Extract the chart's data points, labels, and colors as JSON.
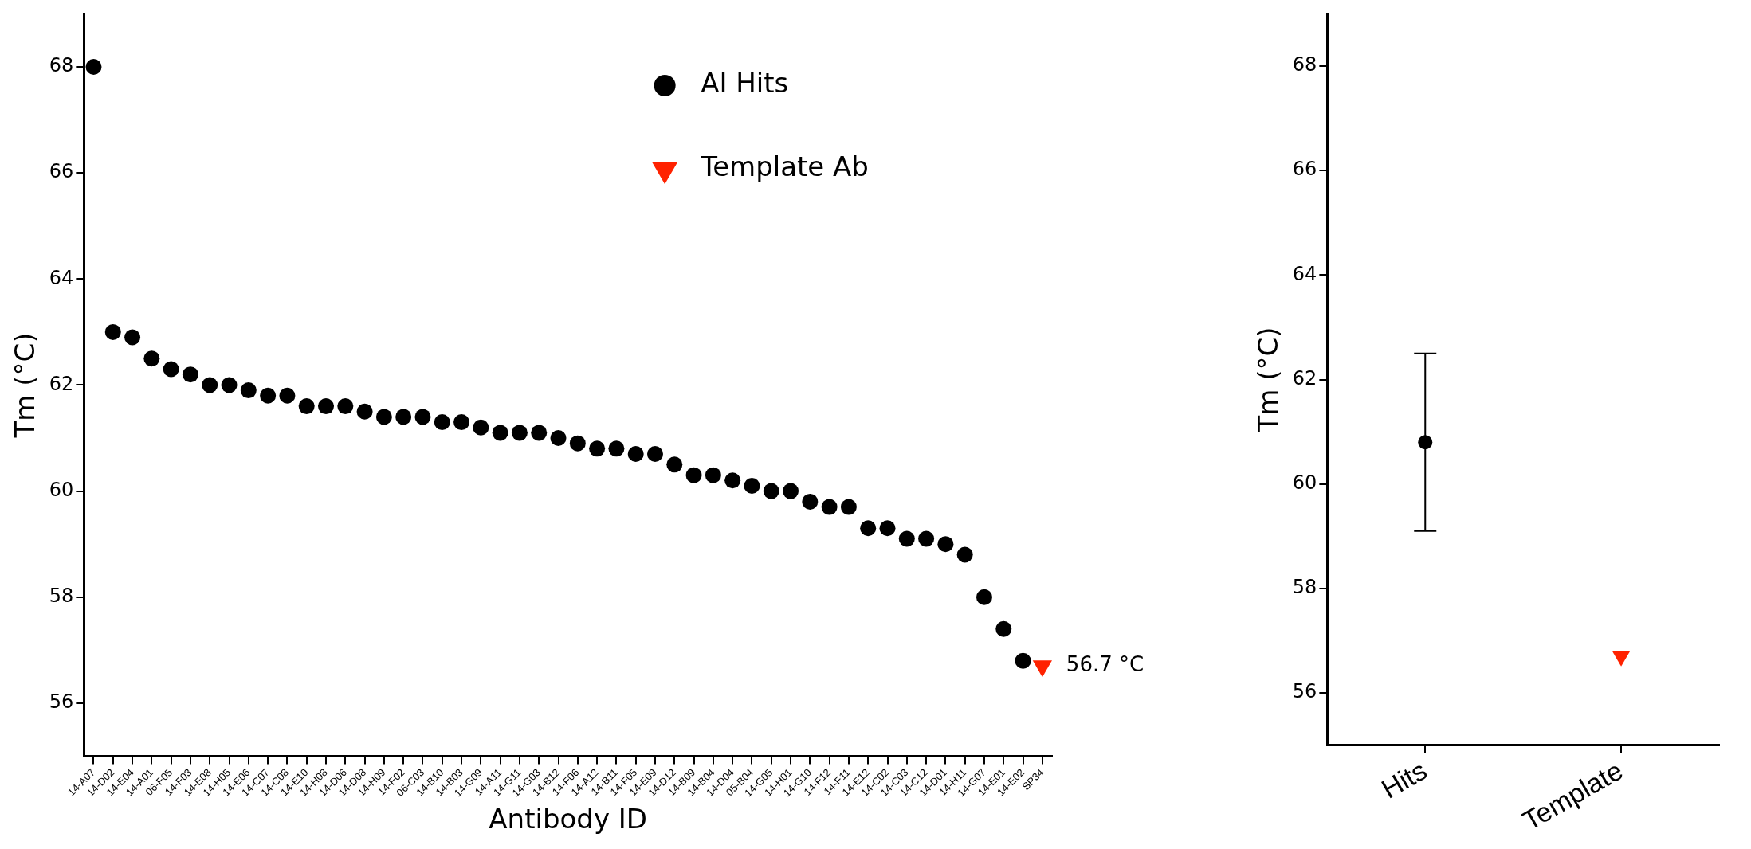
{
  "chart_data": [
    {
      "type": "scatter",
      "xlabel": "Antibody ID",
      "ylabel": "Tm (°C)",
      "categories": [
        "14-A07",
        "14-D02",
        "14-E04",
        "14-A01",
        "06-F05",
        "14-F03",
        "14-E08",
        "14-H05",
        "14-E06",
        "14-C07",
        "14-C08",
        "14-E10",
        "14-H08",
        "14-D06",
        "14-D08",
        "14-H09",
        "14-F02",
        "06-C03",
        "14-B10",
        "14-B03",
        "14-G09",
        "14-A11",
        "14-G11",
        "14-G03",
        "14-B12",
        "14-F06",
        "14-A12",
        "14-B11",
        "14-F05",
        "14-E09",
        "14-D12",
        "14-B09",
        "14-B04",
        "14-D04",
        "05-B04",
        "14-G05",
        "14-H01",
        "14-G10",
        "14-F12",
        "14-F11",
        "14-E12",
        "14-C02",
        "14-C03",
        "14-C12",
        "14-D01",
        "14-H11",
        "14-G07",
        "14-E01",
        "14-E02",
        "SP34"
      ],
      "series": [
        {
          "name": "AI Hits",
          "color": "#000000",
          "marker": "circle",
          "values": [
            68.0,
            63.0,
            62.9,
            62.5,
            62.3,
            62.2,
            62.0,
            62.0,
            61.9,
            61.8,
            61.8,
            61.6,
            61.6,
            61.6,
            61.5,
            61.4,
            61.4,
            61.4,
            61.3,
            61.3,
            61.2,
            61.1,
            61.1,
            61.1,
            61.0,
            60.9,
            60.8,
            60.8,
            60.7,
            60.7,
            60.5,
            60.3,
            60.3,
            60.2,
            60.1,
            60.0,
            60.0,
            59.8,
            59.7,
            59.7,
            59.3,
            59.3,
            59.1,
            59.1,
            59.0,
            58.8,
            58.0,
            57.4,
            56.8,
            null
          ]
        },
        {
          "name": "Template Ab",
          "color": "#ff2200",
          "marker": "triangle",
          "values": [
            null,
            null,
            null,
            null,
            null,
            null,
            null,
            null,
            null,
            null,
            null,
            null,
            null,
            null,
            null,
            null,
            null,
            null,
            null,
            null,
            null,
            null,
            null,
            null,
            null,
            null,
            null,
            null,
            null,
            null,
            null,
            null,
            null,
            null,
            null,
            null,
            null,
            null,
            null,
            null,
            null,
            null,
            null,
            null,
            null,
            null,
            null,
            null,
            null,
            56.7
          ],
          "value_labels": [
            null,
            null,
            null,
            null,
            null,
            null,
            null,
            null,
            null,
            null,
            null,
            null,
            null,
            null,
            null,
            null,
            null,
            null,
            null,
            null,
            null,
            null,
            null,
            null,
            null,
            null,
            null,
            null,
            null,
            null,
            null,
            null,
            null,
            null,
            null,
            null,
            null,
            null,
            null,
            null,
            null,
            null,
            null,
            null,
            null,
            null,
            null,
            null,
            null,
            "56.7 °C"
          ]
        }
      ],
      "ylim": [
        55,
        69
      ],
      "yticks": [
        56,
        58,
        60,
        62,
        64,
        66,
        68
      ],
      "legend": "top right"
    },
    {
      "type": "scatter",
      "ylabel": "Tm (°C)",
      "categories": [
        "Hits",
        "Template"
      ],
      "series": [
        {
          "color": "#000000",
          "marker": "circle",
          "values": [
            60.8,
            null
          ],
          "errors": [
            1.7,
            null
          ]
        },
        {
          "color": "#ff2200",
          "marker": "triangle",
          "values": [
            null,
            56.7
          ]
        }
      ],
      "ylim": [
        55,
        69
      ],
      "yticks": [
        56,
        58,
        60,
        62,
        64,
        66,
        68
      ]
    }
  ]
}
